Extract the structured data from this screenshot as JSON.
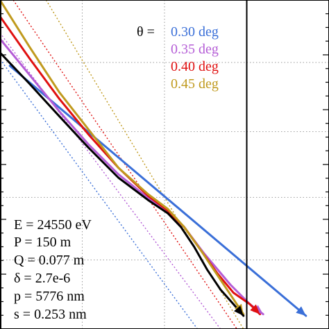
{
  "chart_data": {
    "type": "line",
    "title": "",
    "xlabel": "",
    "ylabel": "",
    "grid": true,
    "legend_position": "top-right",
    "legend_prefix": "θ =",
    "series": [
      {
        "name": "0.30 deg",
        "color": "#3a6fd8",
        "style": "solid",
        "points": [
          [
            0.03,
            0.8
          ],
          [
            0.93,
            0.04
          ]
        ]
      },
      {
        "name": "0.35 deg",
        "color": "#b45cd6",
        "style": "solid",
        "points": [
          [
            0.0,
            0.882
          ],
          [
            0.09,
            0.772
          ],
          [
            0.18,
            0.662
          ],
          [
            0.27,
            0.56
          ],
          [
            0.36,
            0.47
          ],
          [
            0.45,
            0.398
          ],
          [
            0.51,
            0.355
          ],
          [
            0.56,
            0.31
          ],
          [
            0.62,
            0.23
          ],
          [
            0.7,
            0.135
          ],
          [
            0.76,
            0.075
          ],
          [
            0.8,
            0.045
          ]
        ]
      },
      {
        "name": "0.40 deg",
        "color": "#e01010",
        "style": "solid",
        "points": [
          [
            0.0,
            0.95
          ],
          [
            0.09,
            0.822
          ],
          [
            0.18,
            0.7
          ],
          [
            0.27,
            0.59
          ],
          [
            0.36,
            0.49
          ],
          [
            0.45,
            0.405
          ],
          [
            0.51,
            0.36
          ],
          [
            0.56,
            0.31
          ],
          [
            0.61,
            0.24
          ],
          [
            0.66,
            0.17
          ],
          [
            0.71,
            0.11
          ],
          [
            0.76,
            0.075
          ],
          [
            0.79,
            0.045
          ]
        ]
      },
      {
        "name": "0.45 deg",
        "color": "#c09a1e",
        "style": "solid",
        "points": [
          [
            0.0,
            1.0
          ],
          [
            0.09,
            0.857
          ],
          [
            0.18,
            0.72
          ],
          [
            0.27,
            0.605
          ],
          [
            0.36,
            0.49
          ],
          [
            0.45,
            0.41
          ],
          [
            0.51,
            0.365
          ],
          [
            0.56,
            0.31
          ],
          [
            0.61,
            0.24
          ],
          [
            0.66,
            0.165
          ],
          [
            0.7,
            0.105
          ],
          [
            0.74,
            0.045
          ]
        ]
      },
      {
        "name": "",
        "color": "#000000",
        "style": "solid",
        "points": [
          [
            0.0,
            0.84
          ],
          [
            0.09,
            0.745
          ],
          [
            0.18,
            0.647
          ],
          [
            0.27,
            0.55
          ],
          [
            0.36,
            0.46
          ],
          [
            0.45,
            0.392
          ],
          [
            0.51,
            0.352
          ],
          [
            0.55,
            0.31
          ],
          [
            0.59,
            0.25
          ],
          [
            0.63,
            0.18
          ],
          [
            0.67,
            0.12
          ],
          [
            0.71,
            0.075
          ],
          [
            0.74,
            0.04
          ]
        ]
      }
    ],
    "dotted_series": [
      {
        "color": "#3a6fd8",
        "points": [
          [
            0.0,
            0.82
          ],
          [
            0.6,
            0.0
          ]
        ]
      },
      {
        "color": "#b45cd6",
        "points": [
          [
            0.0,
            0.9
          ],
          [
            0.67,
            0.0
          ]
        ]
      },
      {
        "color": "#e01010",
        "points": [
          [
            0.04,
            1.0
          ],
          [
            0.72,
            0.0
          ]
        ]
      },
      {
        "color": "#c09a1e",
        "points": [
          [
            0.14,
            1.0
          ],
          [
            0.74,
            0.0
          ]
        ]
      }
    ],
    "vertical_line_x": 0.75,
    "gridlines_x": [
      0.25,
      0.5,
      0.75
    ],
    "gridlines_y": [
      0.21,
      0.4,
      0.6,
      0.81
    ],
    "xlim": [
      0,
      1
    ],
    "ylim": [
      0,
      1
    ],
    "parameters": [
      {
        "text": "E = 24550 eV"
      },
      {
        "text": "P = 150 m"
      },
      {
        "text": "Q = 0.077 m"
      },
      {
        "text": "δ = 2.7e-6"
      },
      {
        "text": "p = 5776 nm"
      },
      {
        "text": "s = 0.253 nm"
      }
    ]
  }
}
